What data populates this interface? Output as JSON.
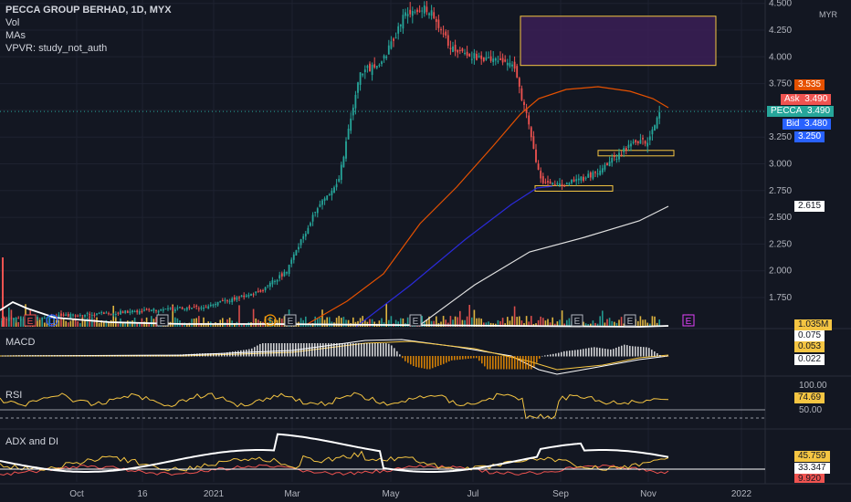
{
  "header": {
    "title": "PECCA GROUP BERHAD, 1D, MYX",
    "indicators": [
      "Vol",
      "MAs",
      "VPVR: study_not_auth"
    ],
    "currency": "MYR"
  },
  "panes": {
    "macd_label": "MACD",
    "rsi_label": "RSI",
    "adx_label": "ADX and DI"
  },
  "quote": {
    "ask_label": "Ask",
    "ask_value": "3.490",
    "symbol_label": "PECCA",
    "symbol_value": "3.490",
    "bid_label": "Bid",
    "bid_value": "3.480",
    "orange_value": "3.535",
    "blue_value": "3.250",
    "white_value": "2.615",
    "volume_value": "1.035M"
  },
  "indicator_values": {
    "macd_top": "0.075",
    "macd_mid": "0.053",
    "macd_low": "0.022",
    "rsi_top": "100.00",
    "rsi_value": "74.69",
    "rsi_mid": "50.00",
    "adx_a": "45.759",
    "adx_b": "33.347",
    "adx_c": "9.920"
  },
  "events": [
    {
      "label": "E",
      "color": "#ef5350"
    },
    {
      "label": "D",
      "color": "#2962ff"
    },
    {
      "label": "E",
      "color": "#b2b5be"
    },
    {
      "label": "S",
      "color": "#ff9800"
    },
    {
      "label": "E",
      "color": "#b2b5be"
    },
    {
      "label": "E",
      "color": "#b2b5be"
    },
    {
      "label": "E",
      "color": "#b2b5be"
    },
    {
      "label": "E",
      "color": "#b2b5be"
    },
    {
      "label": "S",
      "color": "#ff9800"
    },
    {
      "label": "E",
      "color": "#e040fb"
    }
  ],
  "colors": {
    "background": "#131722",
    "up": "#26a69a",
    "down": "#ef5350",
    "ma_orange": "#e65100",
    "ma_blue": "#2a2ad8",
    "ma_white": "#e0e0e0",
    "box_purple": "#3b1f56",
    "box_border": "#f5c542"
  },
  "chart_data": {
    "type": "candlestick",
    "title": "PECCA GROUP BERHAD, 1D, MYX",
    "xlabel": "",
    "ylabel": "",
    "x_ticks": [
      "Oct",
      "16",
      "2021",
      "Mar",
      "May",
      "Jul",
      "Sep",
      "Nov",
      "2022"
    ],
    "y_ticks": [
      "4.500",
      "4.250",
      "4.000",
      "3.750",
      "3.500",
      "3.250",
      "3.000",
      "2.750",
      "2.500",
      "2.250",
      "2.000",
      "1.750"
    ],
    "ylim": [
      1.6,
      4.5
    ],
    "grid": true,
    "price_path": [
      [
        "2020-09-01",
        1.55
      ],
      [
        "2020-10-01",
        1.58
      ],
      [
        "2020-11-15",
        1.62
      ],
      [
        "2021-01-01",
        1.66
      ],
      [
        "2021-01-20",
        1.72
      ],
      [
        "2021-02-10",
        1.8
      ],
      [
        "2021-03-01",
        2.0
      ],
      [
        "2021-03-20",
        2.55
      ],
      [
        "2021-04-05",
        2.85
      ],
      [
        "2021-04-20",
        3.85
      ],
      [
        "2021-05-05",
        3.95
      ],
      [
        "2021-05-20",
        4.4
      ],
      [
        "2021-06-05",
        4.45
      ],
      [
        "2021-06-20",
        4.1
      ],
      [
        "2021-07-10",
        3.98
      ],
      [
        "2021-08-01",
        3.95
      ],
      [
        "2021-08-10",
        3.5
      ],
      [
        "2021-08-20",
        2.85
      ],
      [
        "2021-09-05",
        2.8
      ],
      [
        "2021-09-25",
        2.9
      ],
      [
        "2021-10-10",
        3.05
      ],
      [
        "2021-10-20",
        3.18
      ],
      [
        "2021-11-01",
        3.22
      ],
      [
        "2021-11-10",
        3.49
      ]
    ],
    "ma_series": [
      {
        "name": "MA (orange)",
        "last": 3.535
      },
      {
        "name": "MA (blue)",
        "last": 3.25
      },
      {
        "name": "MA (white)",
        "last": 2.615
      }
    ],
    "zones": [
      {
        "type": "supply",
        "from": 3.92,
        "to": 4.38
      },
      {
        "type": "level",
        "value": 3.1
      },
      {
        "type": "level",
        "value": 2.77
      }
    ],
    "last_price": 3.49
  }
}
